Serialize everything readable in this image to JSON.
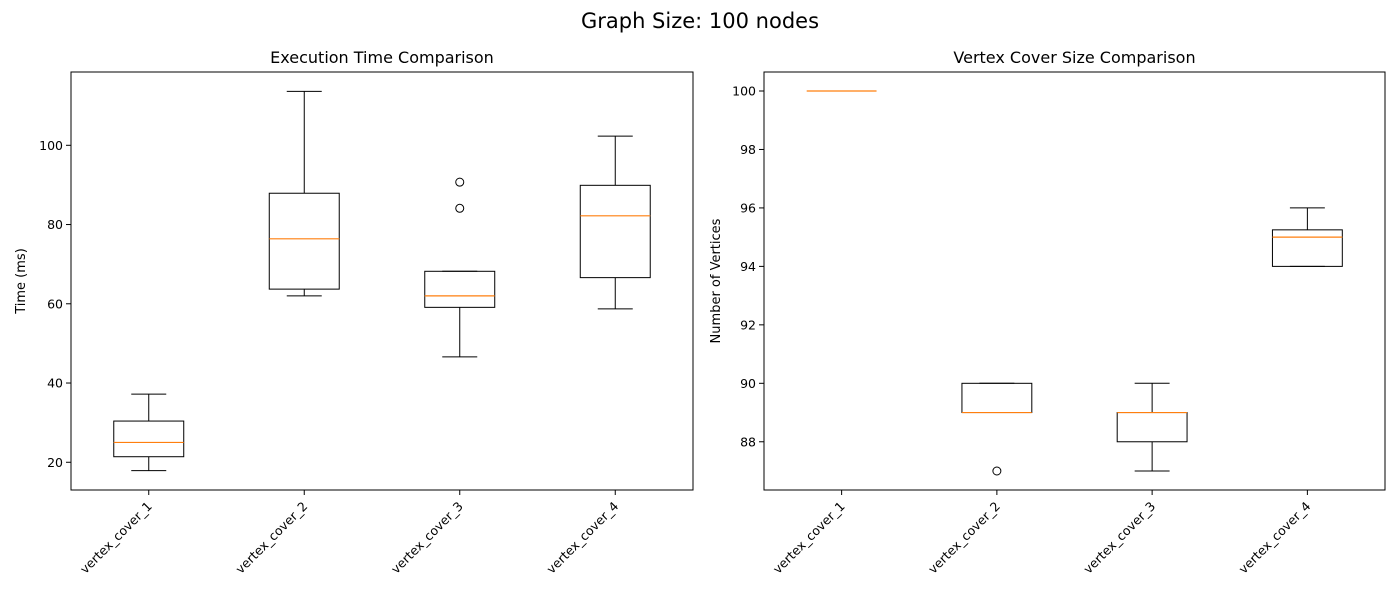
{
  "figure": {
    "suptitle": "Graph Size: 100 nodes"
  },
  "colors": {
    "box": "#000000",
    "median": "#ff7f0e",
    "background": "#ffffff"
  },
  "chart_data": [
    {
      "type": "box",
      "title": "Execution Time Comparison",
      "xlabel": "",
      "ylabel": "Time (ms)",
      "categories": [
        "vertex_cover_1",
        "vertex_cover_2",
        "vertex_cover_3",
        "vertex_cover_4"
      ],
      "ylim": [
        13.0,
        118.5
      ],
      "yticks": [
        20,
        40,
        60,
        80,
        100
      ],
      "boxes": [
        {
          "whislo": 17.9,
          "q1": 21.4,
          "med": 25.0,
          "q3": 30.4,
          "whishi": 37.2,
          "fliers": []
        },
        {
          "whislo": 62.0,
          "q1": 63.7,
          "med": 76.4,
          "q3": 87.9,
          "whishi": 113.6,
          "fliers": []
        },
        {
          "whislo": 46.6,
          "q1": 59.1,
          "med": 62.0,
          "q3": 68.2,
          "whishi": 68.2,
          "fliers": [
            84.1,
            90.7
          ]
        },
        {
          "whislo": 58.7,
          "q1": 66.6,
          "med": 82.2,
          "q3": 89.9,
          "whishi": 102.3,
          "fliers": []
        }
      ],
      "legend": "none",
      "grid": false
    },
    {
      "type": "box",
      "title": "Vertex Cover Size Comparison",
      "xlabel": "",
      "ylabel": "Number of Vertices",
      "categories": [
        "vertex_cover_1",
        "vertex_cover_2",
        "vertex_cover_3",
        "vertex_cover_4"
      ],
      "ylim": [
        86.35,
        100.65
      ],
      "yticks": [
        88,
        90,
        92,
        94,
        96,
        98,
        100
      ],
      "boxes": [
        {
          "whislo": 100,
          "q1": 100,
          "med": 100,
          "q3": 100,
          "whishi": 100,
          "fliers": []
        },
        {
          "whislo": 89,
          "q1": 89,
          "med": 89,
          "q3": 90,
          "whishi": 90,
          "fliers": [
            87
          ]
        },
        {
          "whislo": 87,
          "q1": 88,
          "med": 89,
          "q3": 89,
          "whishi": 90,
          "fliers": []
        },
        {
          "whislo": 94,
          "q1": 94,
          "med": 95,
          "q3": 95.25,
          "whishi": 96,
          "fliers": []
        }
      ],
      "legend": "none",
      "grid": false
    }
  ]
}
